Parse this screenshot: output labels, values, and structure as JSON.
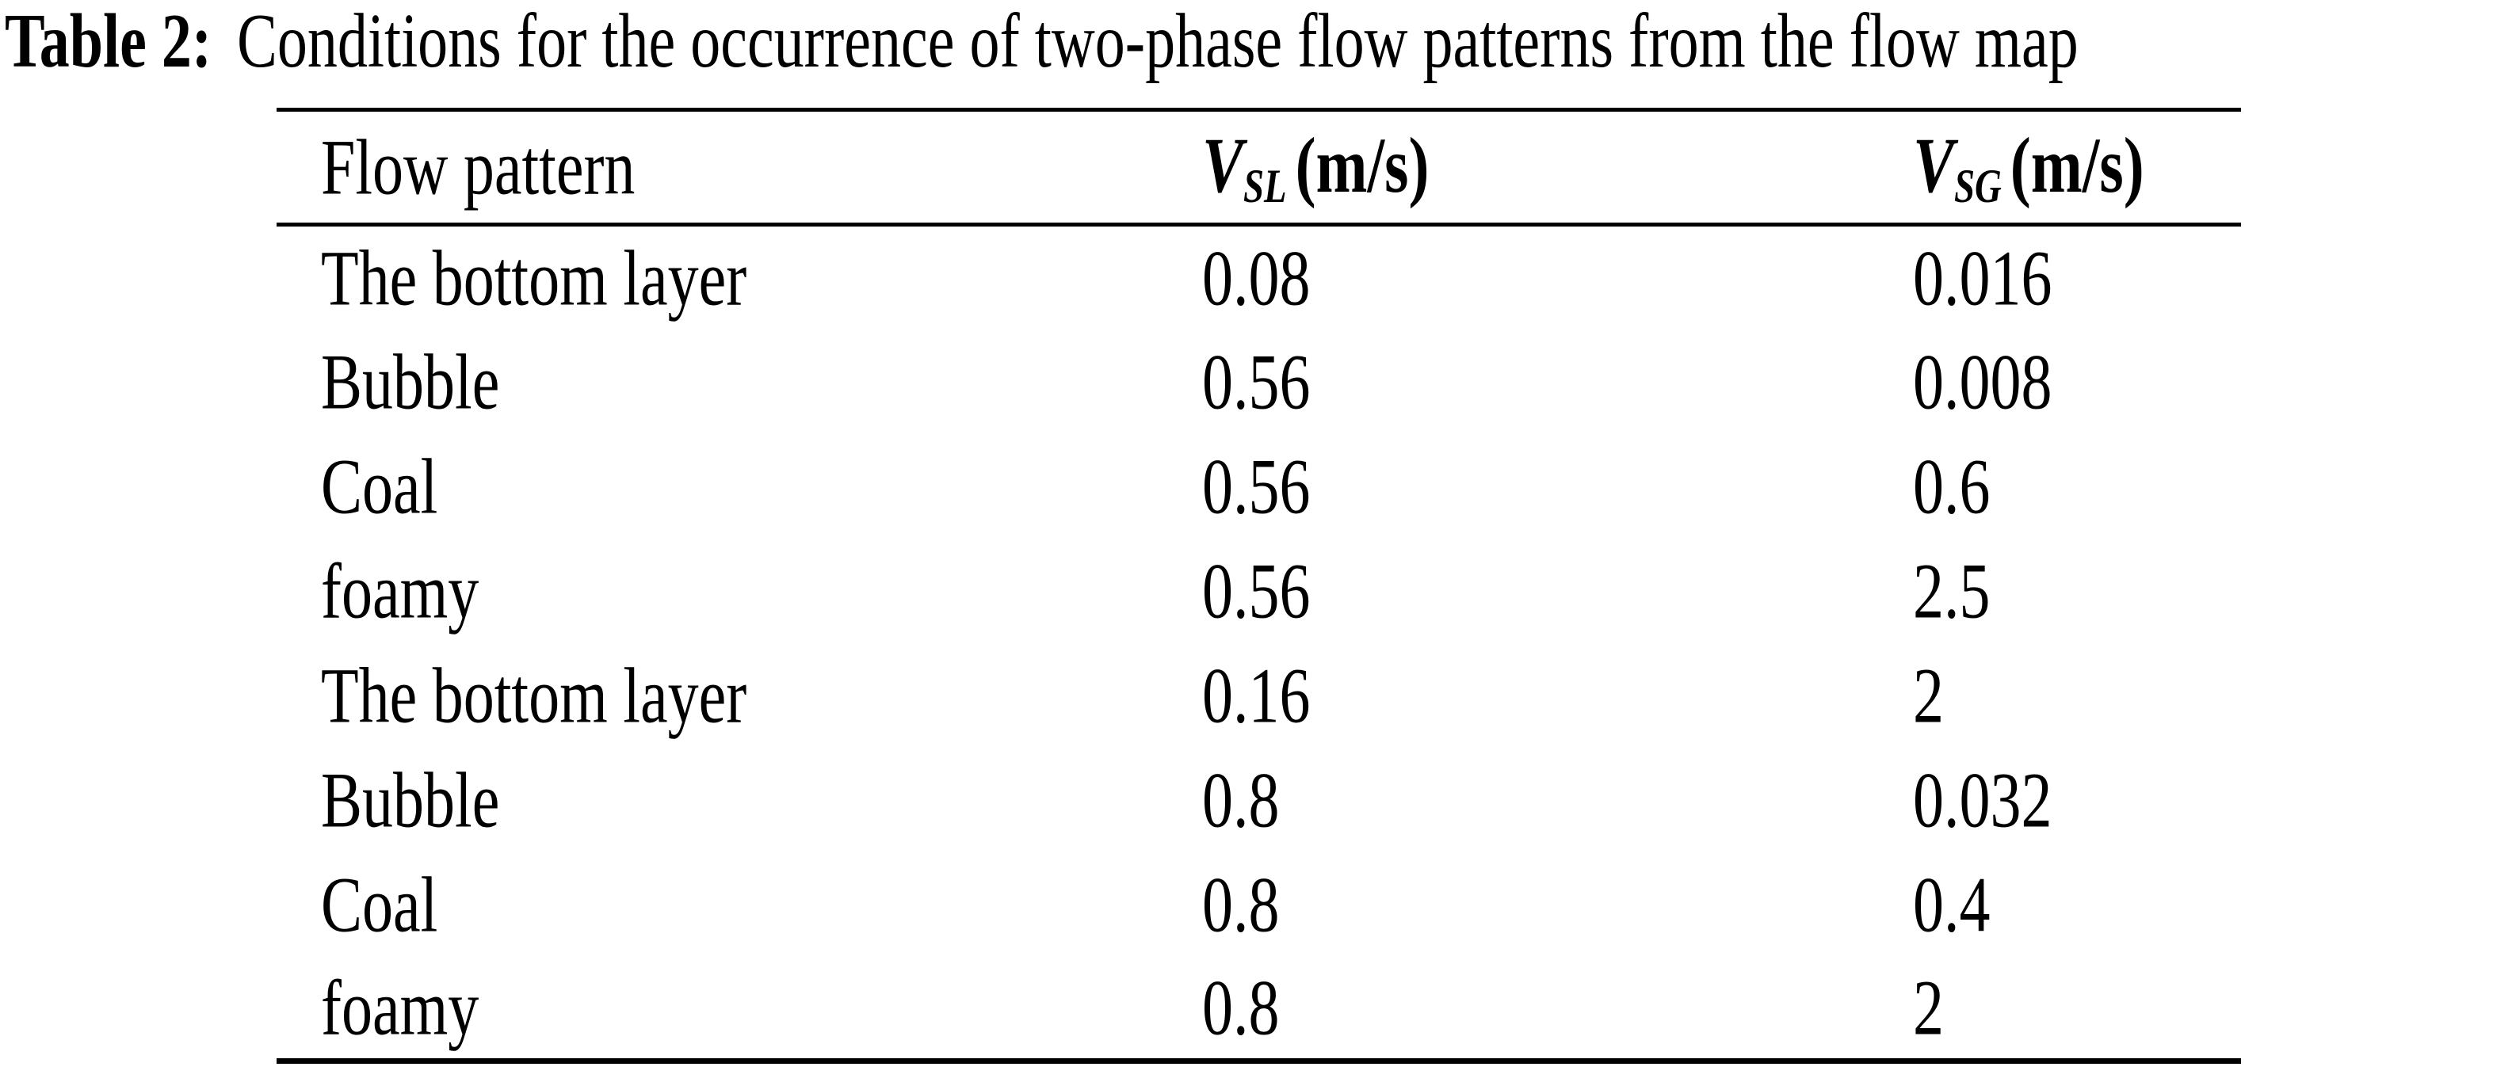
{
  "title": {
    "label": "Table 2:",
    "text": "Conditions for the occurrence of two-phase flow patterns from the flow map"
  },
  "table": {
    "columns": [
      {
        "label": "Flow pattern"
      },
      {
        "symbol": "V",
        "subscript": "SL",
        "unit": "(m/s)"
      },
      {
        "symbol": "V",
        "subscript": "SG",
        "unit": "(m/s)"
      }
    ],
    "rows": [
      {
        "pattern": "The bottom layer",
        "vsl": "0.08",
        "vsg": "0.016"
      },
      {
        "pattern": "Bubble",
        "vsl": "0.56",
        "vsg": "0.008"
      },
      {
        "pattern": "Coal",
        "vsl": "0.56",
        "vsg": "0.6"
      },
      {
        "pattern": "foamy",
        "vsl": "0.56",
        "vsg": "2.5"
      },
      {
        "pattern": "The bottom layer",
        "vsl": "0.16",
        "vsg": "2"
      },
      {
        "pattern": "Bubble",
        "vsl": "0.8",
        "vsg": "0.032"
      },
      {
        "pattern": "Coal",
        "vsl": "0.8",
        "vsg": "0.4"
      },
      {
        "pattern": "foamy",
        "vsl": "0.8",
        "vsg": "2"
      }
    ]
  },
  "colors": {
    "text": "#000000",
    "background": "#ffffff",
    "rule": "#000000"
  }
}
